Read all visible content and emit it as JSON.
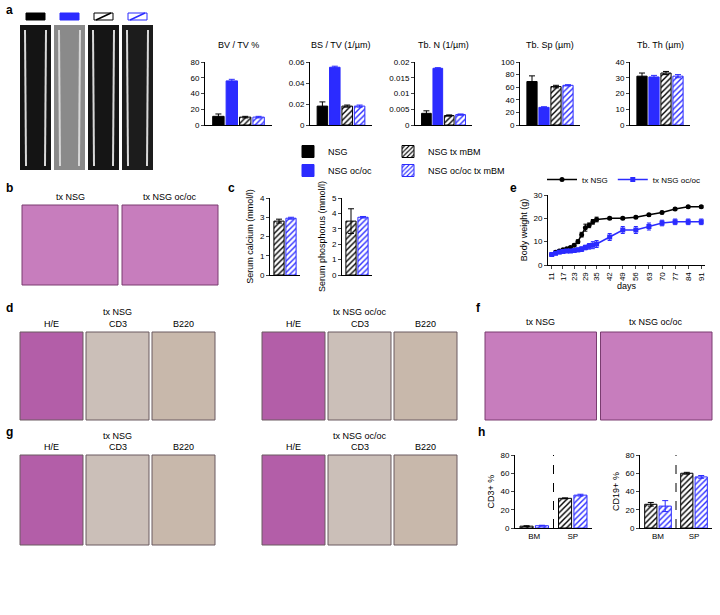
{
  "panel_labels": [
    "a",
    "b",
    "c",
    "d",
    "e",
    "f",
    "g",
    "h"
  ],
  "images": {
    "b": {
      "columns": [
        "tx NSG",
        "tx NSG oc/oc"
      ]
    },
    "d": {
      "groups": [
        {
          "title": "tx NSG",
          "columns": [
            "H/E",
            "CD3",
            "B220"
          ]
        },
        {
          "title": "tx NSG oc/oc",
          "columns": [
            "H/E",
            "CD3",
            "B220"
          ]
        }
      ]
    },
    "f": {
      "columns": [
        "tx NSG",
        "tx NSG oc/oc"
      ]
    },
    "g": {
      "groups": [
        {
          "title": "tx NSG",
          "columns": [
            "H/E",
            "CD3",
            "B220"
          ]
        },
        {
          "title": "tx NSG oc/oc",
          "columns": [
            "H/E",
            "CD3",
            "B220"
          ]
        }
      ]
    }
  },
  "chart_data": [
    {
      "type": "bar",
      "title": "BV / TV %",
      "categories": [
        null
      ],
      "ylim": [
        0,
        80
      ],
      "yticks": [
        0,
        20,
        40,
        60,
        80
      ],
      "tick_labels": "y",
      "legend": "bottom",
      "series": [
        {
          "name": "NSG",
          "color": "#000000",
          "marker": "solid",
          "values": [
            11
          ],
          "errors": [
            3
          ]
        },
        {
          "name": "NSG oc/oc",
          "color": "#2b2bff",
          "marker": "solid",
          "values": [
            56
          ],
          "errors": [
            2
          ]
        },
        {
          "name": "NSG tx mBM",
          "color": "#000000",
          "marker": "hatched",
          "values": [
            10
          ],
          "errors": [
            1
          ]
        },
        {
          "name": "NSG oc/oc tx mBM",
          "color": "#2b2bff",
          "marker": "hatched",
          "values": [
            10
          ],
          "errors": [
            1
          ]
        }
      ]
    },
    {
      "type": "bar",
      "title": "BS / TV (1/µm)",
      "categories": [
        null
      ],
      "ylim": [
        0,
        0.06
      ],
      "yticks": [
        0,
        0.02,
        0.04,
        0.06
      ],
      "tick_labels": "y",
      "series": [
        {
          "name": "NSG",
          "color": "#000000",
          "marker": "solid",
          "values": [
            0.018
          ],
          "errors": [
            0.004
          ]
        },
        {
          "name": "NSG oc/oc",
          "color": "#2b2bff",
          "marker": "solid",
          "values": [
            0.055
          ],
          "errors": [
            0.001
          ]
        },
        {
          "name": "NSG tx mBM",
          "color": "#000000",
          "marker": "hatched",
          "values": [
            0.018
          ],
          "errors": [
            0.001
          ]
        },
        {
          "name": "NSG oc/oc tx mBM",
          "color": "#2b2bff",
          "marker": "hatched",
          "values": [
            0.018
          ],
          "errors": [
            0.001
          ]
        }
      ]
    },
    {
      "type": "bar",
      "title": "Tb. N (1/µm)",
      "categories": [
        null
      ],
      "ylim": [
        0,
        0.02
      ],
      "yticks": [
        0,
        0.005,
        0.01,
        0.015,
        0.02
      ],
      "tick_labels": "y",
      "series": [
        {
          "name": "NSG",
          "color": "#000000",
          "marker": "solid",
          "values": [
            0.0037
          ],
          "errors": [
            0.0008
          ]
        },
        {
          "name": "NSG oc/oc",
          "color": "#2b2bff",
          "marker": "solid",
          "values": [
            0.018
          ],
          "errors": [
            0.0002
          ]
        },
        {
          "name": "NSG tx mBM",
          "color": "#000000",
          "marker": "hatched",
          "values": [
            0.003
          ],
          "errors": [
            0.0002
          ]
        },
        {
          "name": "NSG oc/oc tx mBM",
          "color": "#2b2bff",
          "marker": "hatched",
          "values": [
            0.0033
          ],
          "errors": [
            0.0002
          ]
        }
      ]
    },
    {
      "type": "bar",
      "title": "Tb. Sp (µm)",
      "categories": [
        null
      ],
      "ylim": [
        0,
        100
      ],
      "yticks": [
        0,
        20,
        40,
        60,
        80,
        100
      ],
      "tick_labels": "y",
      "series": [
        {
          "name": "NSG",
          "color": "#000000",
          "marker": "solid",
          "values": [
            69
          ],
          "errors": [
            9
          ]
        },
        {
          "name": "NSG oc/oc",
          "color": "#2b2bff",
          "marker": "solid",
          "values": [
            28
          ],
          "errors": [
            1
          ]
        },
        {
          "name": "NSG tx mBM",
          "color": "#000000",
          "marker": "hatched",
          "values": [
            61
          ],
          "errors": [
            2
          ]
        },
        {
          "name": "NSG oc/oc tx mBM",
          "color": "#2b2bff",
          "marker": "hatched",
          "values": [
            63
          ],
          "errors": [
            1
          ]
        }
      ]
    },
    {
      "type": "bar",
      "title": "Tb. Th (µm)",
      "categories": [
        null
      ],
      "ylim": [
        0,
        40
      ],
      "yticks": [
        0,
        10,
        20,
        30,
        40
      ],
      "tick_labels": "y",
      "series": [
        {
          "name": "NSG",
          "color": "#000000",
          "marker": "solid",
          "values": [
            31
          ],
          "errors": [
            2
          ]
        },
        {
          "name": "NSG oc/oc",
          "color": "#2b2bff",
          "marker": "solid",
          "values": [
            30.5
          ],
          "errors": [
            1
          ]
        },
        {
          "name": "NSG tx mBM",
          "color": "#000000",
          "marker": "hatched",
          "values": [
            33
          ],
          "errors": [
            1
          ]
        },
        {
          "name": "NSG oc/oc tx mBM",
          "color": "#2b2bff",
          "marker": "hatched",
          "values": [
            31
          ],
          "errors": [
            1
          ]
        }
      ]
    },
    {
      "type": "bar",
      "y_label": "Serum calcium (mmol/l)",
      "categories": [
        null
      ],
      "ylim": [
        0,
        4
      ],
      "yticks": [
        0,
        1,
        2,
        3,
        4
      ],
      "tick_labels": "y",
      "series": [
        {
          "color": "#000000",
          "marker": "hatched",
          "values": [
            2.8
          ],
          "errors": [
            0.1
          ]
        },
        {
          "color": "#2b2bff",
          "marker": "hatched",
          "values": [
            2.95
          ],
          "errors": [
            0.05
          ]
        }
      ]
    },
    {
      "type": "bar",
      "y_label": "Serum phosphorus (mmol/l)",
      "categories": [
        null
      ],
      "ylim": [
        0,
        5
      ],
      "yticks": [
        0,
        1,
        2,
        3,
        4,
        5
      ],
      "tick_labels": "y",
      "series": [
        {
          "color": "#000000",
          "marker": "hatched",
          "values": [
            3.5
          ],
          "errors": [
            0.8
          ]
        },
        {
          "color": "#2b2bff",
          "marker": "hatched",
          "values": [
            3.75
          ],
          "errors": [
            0.05
          ]
        }
      ]
    },
    {
      "type": "line",
      "x_label": "days",
      "y_label": "Body weight (g)",
      "xlim": [
        9,
        93
      ],
      "xticks": [
        11,
        17,
        23,
        29,
        35,
        42,
        49,
        56,
        63,
        70,
        77,
        84,
        91
      ],
      "ylim": [
        0,
        30
      ],
      "yticks": [
        0,
        10,
        20,
        30
      ],
      "legend": "top right",
      "x": [
        11,
        13,
        15,
        17,
        19,
        21,
        23,
        25,
        27,
        29,
        31,
        33,
        35,
        42,
        49,
        56,
        63,
        70,
        77,
        84,
        91
      ],
      "series": [
        {
          "name": "tx NSG",
          "color": "#000000",
          "marker": "circle",
          "values": [
            4.5,
            5.5,
            6,
            6.5,
            7,
            7.5,
            8.5,
            10,
            13,
            16,
            17,
            18.5,
            19.5,
            20,
            20,
            20.5,
            21.5,
            22.5,
            24,
            25,
            25
          ],
          "errors": [
            0.2,
            0.3,
            0.3,
            0.3,
            0.3,
            0.4,
            0.5,
            0.8,
            1,
            1.5,
            1,
            1,
            1,
            0.5,
            0.5,
            0.5,
            0.5,
            0.5,
            0.5,
            0.5,
            0.5
          ]
        },
        {
          "name": "tx NSG oc/oc",
          "color": "#2b2bff",
          "marker": "square",
          "values": [
            4.5,
            5,
            5.5,
            5.8,
            6,
            6,
            6.2,
            6.5,
            6.8,
            7.5,
            8,
            8.5,
            9,
            12,
            15,
            15,
            16.5,
            18,
            18.5,
            18.5,
            18.5
          ],
          "errors": [
            0.3,
            0.3,
            0.4,
            0.4,
            0.5,
            0.5,
            0.6,
            0.8,
            1,
            1,
            1.2,
            1.5,
            1.5,
            1.5,
            1.5,
            1.5,
            1.5,
            1.2,
            1.2,
            1.2,
            1.2
          ]
        }
      ]
    },
    {
      "type": "bar",
      "y_label": "CD3+ %",
      "categories": [
        "BM",
        "SP"
      ],
      "ylim": [
        0,
        80
      ],
      "yticks": [
        0,
        20,
        40,
        60,
        80
      ],
      "series": [
        {
          "color": "#000000",
          "marker": "hatched",
          "values": [
            2,
            32.5
          ],
          "errors": [
            0.5,
            0.5
          ]
        },
        {
          "color": "#2b2bff",
          "marker": "hatched",
          "values": [
            2.5,
            36
          ],
          "errors": [
            0.5,
            1
          ]
        }
      ]
    },
    {
      "type": "bar",
      "y_label": "CD19+ %",
      "categories": [
        "BM",
        "SP"
      ],
      "ylim": [
        0,
        80
      ],
      "yticks": [
        0,
        20,
        40,
        60,
        80
      ],
      "series": [
        {
          "color": "#000000",
          "marker": "hatched",
          "values": [
            26,
            60
          ],
          "errors": [
            2,
            1
          ]
        },
        {
          "color": "#2b2bff",
          "marker": "hatched",
          "values": [
            24,
            56
          ],
          "errors": [
            6,
            1.5
          ]
        }
      ]
    }
  ]
}
